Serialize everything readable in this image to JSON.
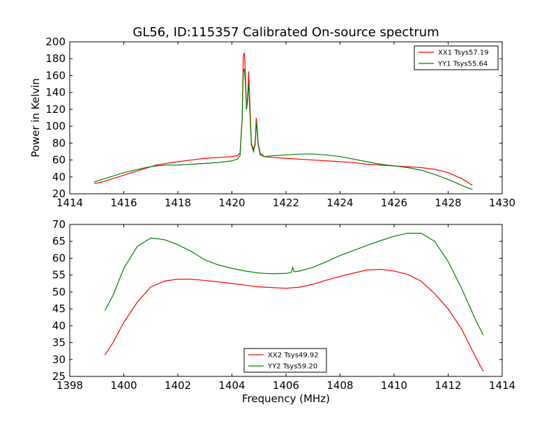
{
  "chart_data": [
    {
      "type": "line",
      "title": "GL56, ID:115357 Calibrated On-source spectrum",
      "xlabel": "",
      "ylabel": "Power in Kelvin",
      "xlim": [
        1414,
        1430
      ],
      "ylim": [
        20,
        200
      ],
      "xticks": [
        "1414",
        "1416",
        "1418",
        "1420",
        "1422",
        "1424",
        "1426",
        "1428",
        "1430"
      ],
      "yticks": [
        "20",
        "40",
        "60",
        "80",
        "100",
        "120",
        "140",
        "160",
        "180",
        "200"
      ],
      "legend_position": "top-right",
      "grid": false,
      "series": [
        {
          "name": "XX1 Tsys57.19",
          "color": "#ff0000",
          "points": [
            [
              1414.9,
              32
            ],
            [
              1415.2,
              34
            ],
            [
              1415.6,
              38
            ],
            [
              1416.0,
              42
            ],
            [
              1416.4,
              46
            ],
            [
              1416.8,
              50
            ],
            [
              1417.2,
              54
            ],
            [
              1417.6,
              56
            ],
            [
              1418.0,
              58
            ],
            [
              1418.5,
              60
            ],
            [
              1419.0,
              62
            ],
            [
              1419.5,
              63
            ],
            [
              1420.0,
              64
            ],
            [
              1420.2,
              65
            ],
            [
              1420.3,
              68
            ],
            [
              1420.38,
              110
            ],
            [
              1420.42,
              183
            ],
            [
              1420.46,
              187
            ],
            [
              1420.5,
              160
            ],
            [
              1420.54,
              120
            ],
            [
              1420.58,
              130
            ],
            [
              1420.62,
              165
            ],
            [
              1420.66,
              130
            ],
            [
              1420.72,
              80
            ],
            [
              1420.8,
              72
            ],
            [
              1420.86,
              80
            ],
            [
              1420.9,
              110
            ],
            [
              1420.93,
              100
            ],
            [
              1420.97,
              80
            ],
            [
              1421.05,
              68
            ],
            [
              1421.2,
              64
            ],
            [
              1421.5,
              63
            ],
            [
              1422.0,
              62
            ],
            [
              1422.5,
              61
            ],
            [
              1423.0,
              60
            ],
            [
              1423.5,
              59
            ],
            [
              1424.0,
              58
            ],
            [
              1424.5,
              57
            ],
            [
              1425.0,
              55
            ],
            [
              1425.5,
              54
            ],
            [
              1426.0,
              53
            ],
            [
              1426.5,
              52
            ],
            [
              1427.0,
              51
            ],
            [
              1427.5,
              49
            ],
            [
              1428.0,
              45
            ],
            [
              1428.5,
              38
            ],
            [
              1428.9,
              30
            ]
          ]
        },
        {
          "name": "YY1 Tsys55.64",
          "color": "#008000",
          "points": [
            [
              1414.9,
              34
            ],
            [
              1415.2,
              37
            ],
            [
              1415.6,
              41
            ],
            [
              1416.0,
              45
            ],
            [
              1416.4,
              48
            ],
            [
              1416.8,
              51
            ],
            [
              1417.2,
              53
            ],
            [
              1417.6,
              54
            ],
            [
              1418.0,
              54
            ],
            [
              1418.5,
              55
            ],
            [
              1419.0,
              56
            ],
            [
              1419.5,
              57
            ],
            [
              1420.0,
              59
            ],
            [
              1420.2,
              61
            ],
            [
              1420.3,
              65
            ],
            [
              1420.38,
              110
            ],
            [
              1420.42,
              165
            ],
            [
              1420.46,
              168
            ],
            [
              1420.5,
              150
            ],
            [
              1420.54,
              120
            ],
            [
              1420.58,
              135
            ],
            [
              1420.62,
              150
            ],
            [
              1420.66,
              120
            ],
            [
              1420.72,
              78
            ],
            [
              1420.8,
              70
            ],
            [
              1420.86,
              78
            ],
            [
              1420.9,
              105
            ],
            [
              1420.93,
              95
            ],
            [
              1420.97,
              78
            ],
            [
              1421.05,
              66
            ],
            [
              1421.2,
              64
            ],
            [
              1421.5,
              65
            ],
            [
              1422.0,
              66
            ],
            [
              1422.5,
              67
            ],
            [
              1423.0,
              67
            ],
            [
              1423.5,
              66
            ],
            [
              1424.0,
              64
            ],
            [
              1424.5,
              61
            ],
            [
              1425.0,
              58
            ],
            [
              1425.5,
              55
            ],
            [
              1426.0,
              53
            ],
            [
              1426.5,
              51
            ],
            [
              1427.0,
              48
            ],
            [
              1427.5,
              43
            ],
            [
              1428.0,
              37
            ],
            [
              1428.5,
              30
            ],
            [
              1428.9,
              25
            ]
          ]
        }
      ]
    },
    {
      "type": "line",
      "title": "",
      "xlabel": "Frequency (MHz)",
      "ylabel": "",
      "xlim": [
        1398,
        1414
      ],
      "ylim": [
        25,
        70
      ],
      "xticks": [
        "1398",
        "1400",
        "1402",
        "1404",
        "1406",
        "1408",
        "1410",
        "1412",
        "1414"
      ],
      "yticks": [
        "25",
        "30",
        "35",
        "40",
        "45",
        "50",
        "55",
        "60",
        "65",
        "70"
      ],
      "legend_position": "bottom-center",
      "grid": false,
      "series": [
        {
          "name": "XX2 Tsys49.92",
          "color": "#ff0000",
          "points": [
            [
              1399.3,
              31.3
            ],
            [
              1399.6,
              35
            ],
            [
              1400.0,
              41
            ],
            [
              1400.5,
              47
            ],
            [
              1401.0,
              51.5
            ],
            [
              1401.5,
              53.2
            ],
            [
              1402.0,
              53.8
            ],
            [
              1402.5,
              53.8
            ],
            [
              1403.0,
              53.4
            ],
            [
              1403.5,
              53
            ],
            [
              1404.0,
              52.5
            ],
            [
              1404.5,
              52
            ],
            [
              1405.0,
              51.5
            ],
            [
              1405.5,
              51.3
            ],
            [
              1406.0,
              51.1
            ],
            [
              1406.5,
              51.4
            ],
            [
              1407.0,
              52.3
            ],
            [
              1407.5,
              53.5
            ],
            [
              1408.0,
              54.6
            ],
            [
              1408.5,
              55.6
            ],
            [
              1409.0,
              56.5
            ],
            [
              1409.5,
              56.7
            ],
            [
              1410.0,
              56.2
            ],
            [
              1410.5,
              55.2
            ],
            [
              1411.0,
              53.2
            ],
            [
              1411.5,
              49.5
            ],
            [
              1412.0,
              45
            ],
            [
              1412.5,
              39
            ],
            [
              1413.0,
              31
            ],
            [
              1413.3,
              26.5
            ]
          ]
        },
        {
          "name": "YY2 Tsys59.20",
          "color": "#008000",
          "points": [
            [
              1399.3,
              44.5
            ],
            [
              1399.6,
              49
            ],
            [
              1400.0,
              57
            ],
            [
              1400.5,
              63.5
            ],
            [
              1401.0,
              66
            ],
            [
              1401.5,
              65.5
            ],
            [
              1402.0,
              64
            ],
            [
              1402.5,
              62
            ],
            [
              1403.0,
              59.5
            ],
            [
              1403.5,
              58
            ],
            [
              1404.0,
              57
            ],
            [
              1404.5,
              56.2
            ],
            [
              1405.0,
              55.6
            ],
            [
              1405.5,
              55.4
            ],
            [
              1406.0,
              55.5
            ],
            [
              1406.2,
              55.8
            ],
            [
              1406.25,
              57.3
            ],
            [
              1406.3,
              56
            ],
            [
              1406.5,
              56.2
            ],
            [
              1407.0,
              57.3
            ],
            [
              1407.5,
              59
            ],
            [
              1408.0,
              60.8
            ],
            [
              1408.5,
              62.3
            ],
            [
              1409.0,
              63.8
            ],
            [
              1409.5,
              65.2
            ],
            [
              1410.0,
              66.5
            ],
            [
              1410.5,
              67.4
            ],
            [
              1411.0,
              67.4
            ],
            [
              1411.5,
              65
            ],
            [
              1412.0,
              59
            ],
            [
              1412.5,
              51
            ],
            [
              1413.0,
              42
            ],
            [
              1413.3,
              37.2
            ]
          ]
        }
      ]
    }
  ]
}
